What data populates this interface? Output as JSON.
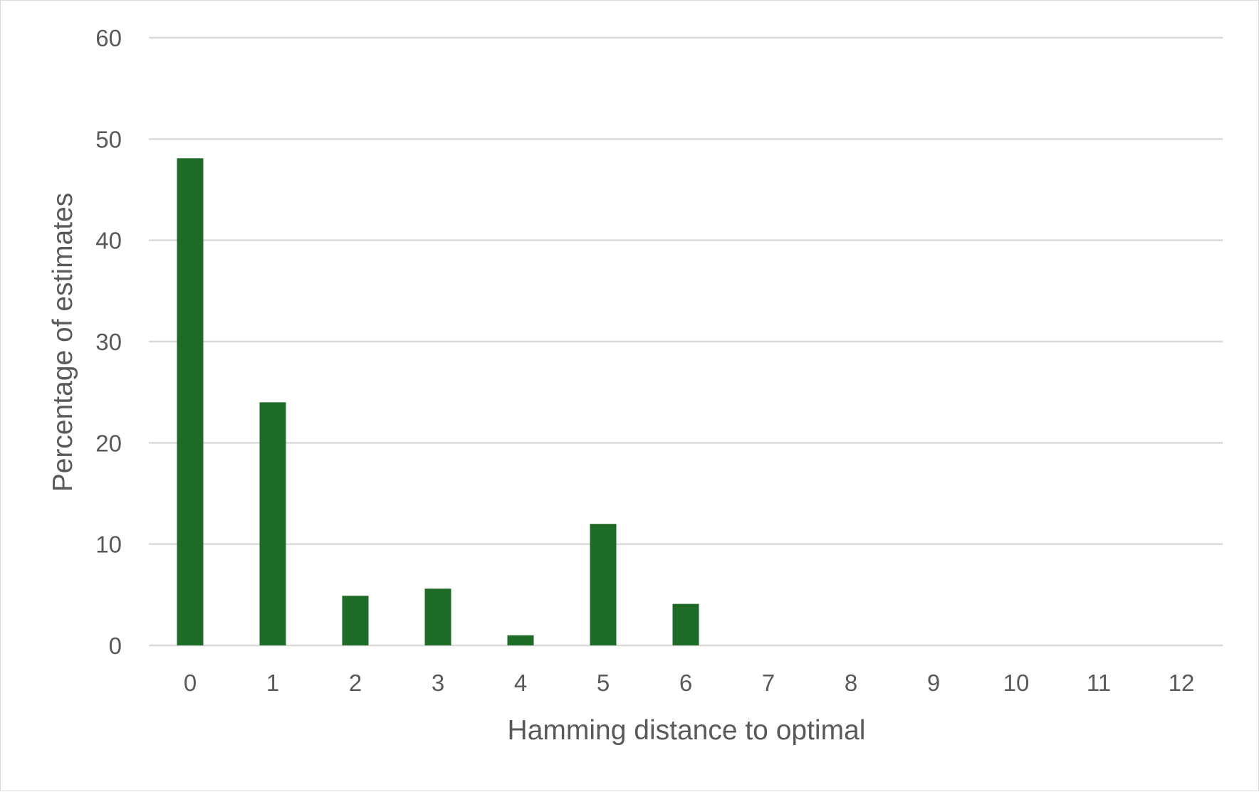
{
  "chart_data": {
    "type": "bar",
    "title": "",
    "xlabel": "Hamming distance to optimal",
    "ylabel": "Percentage of estimates",
    "categories": [
      "0",
      "1",
      "2",
      "3",
      "4",
      "5",
      "6",
      "7",
      "8",
      "9",
      "10",
      "11",
      "12"
    ],
    "values": [
      48.1,
      24.0,
      4.9,
      5.6,
      1.0,
      12.0,
      4.1,
      0,
      0,
      0,
      0,
      0,
      0
    ],
    "ylim": [
      0,
      60
    ],
    "yticks": [
      "0",
      "10",
      "20",
      "30",
      "40",
      "50",
      "60"
    ],
    "grid": true,
    "legend": "none",
    "bar_color": "#1d6b27"
  }
}
